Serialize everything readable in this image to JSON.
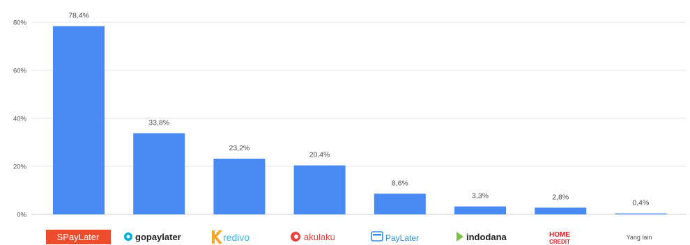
{
  "chart_data": {
    "type": "bar",
    "categories": [
      "SPayLater",
      "gopaylater",
      "Kredivo",
      "akulaku",
      "PayLater",
      "indodana",
      "HOME CREDIT",
      "Yang lain"
    ],
    "values": [
      78.4,
      33.8,
      23.2,
      20.4,
      8.6,
      3.3,
      2.8,
      0.4
    ],
    "value_labels": [
      "78,4%",
      "33,8%",
      "23,2%",
      "20,4%",
      "8,6%",
      "3,3%",
      "2,8%",
      "0,4%"
    ],
    "y_ticks": [
      0,
      20,
      40,
      60,
      80
    ],
    "y_tick_labels": [
      "0%",
      "20%",
      "40%",
      "60%",
      "80%"
    ],
    "ylim": [
      0,
      80
    ],
    "grid": true,
    "title": "",
    "xlabel": "",
    "ylabel": "",
    "bar_color": "#4a8af4"
  },
  "logos": {
    "spaylater": {
      "text": "SPayLater",
      "bg_color": "#ee4d2d",
      "text_color": "#ffffff"
    },
    "gopaylater": {
      "text": "gopaylater",
      "color": "#222222",
      "icon_color": "#00aed6"
    },
    "kredivo": {
      "text": "redivo",
      "color": "#39b5e8",
      "accent": "#f5a623"
    },
    "akulaku": {
      "text": "akulaku",
      "color": "#e8423f"
    },
    "paylater": {
      "text": "PayLater",
      "color": "#2f8fe0"
    },
    "indodana": {
      "text": "indodana",
      "color": "#222222",
      "icon_color": "#7bc143"
    },
    "homecredit": {
      "text_line1": "HOME",
      "text_line2": "CREDIT",
      "color": "#e11b22"
    },
    "other": {
      "text": "Yang lain"
    }
  }
}
